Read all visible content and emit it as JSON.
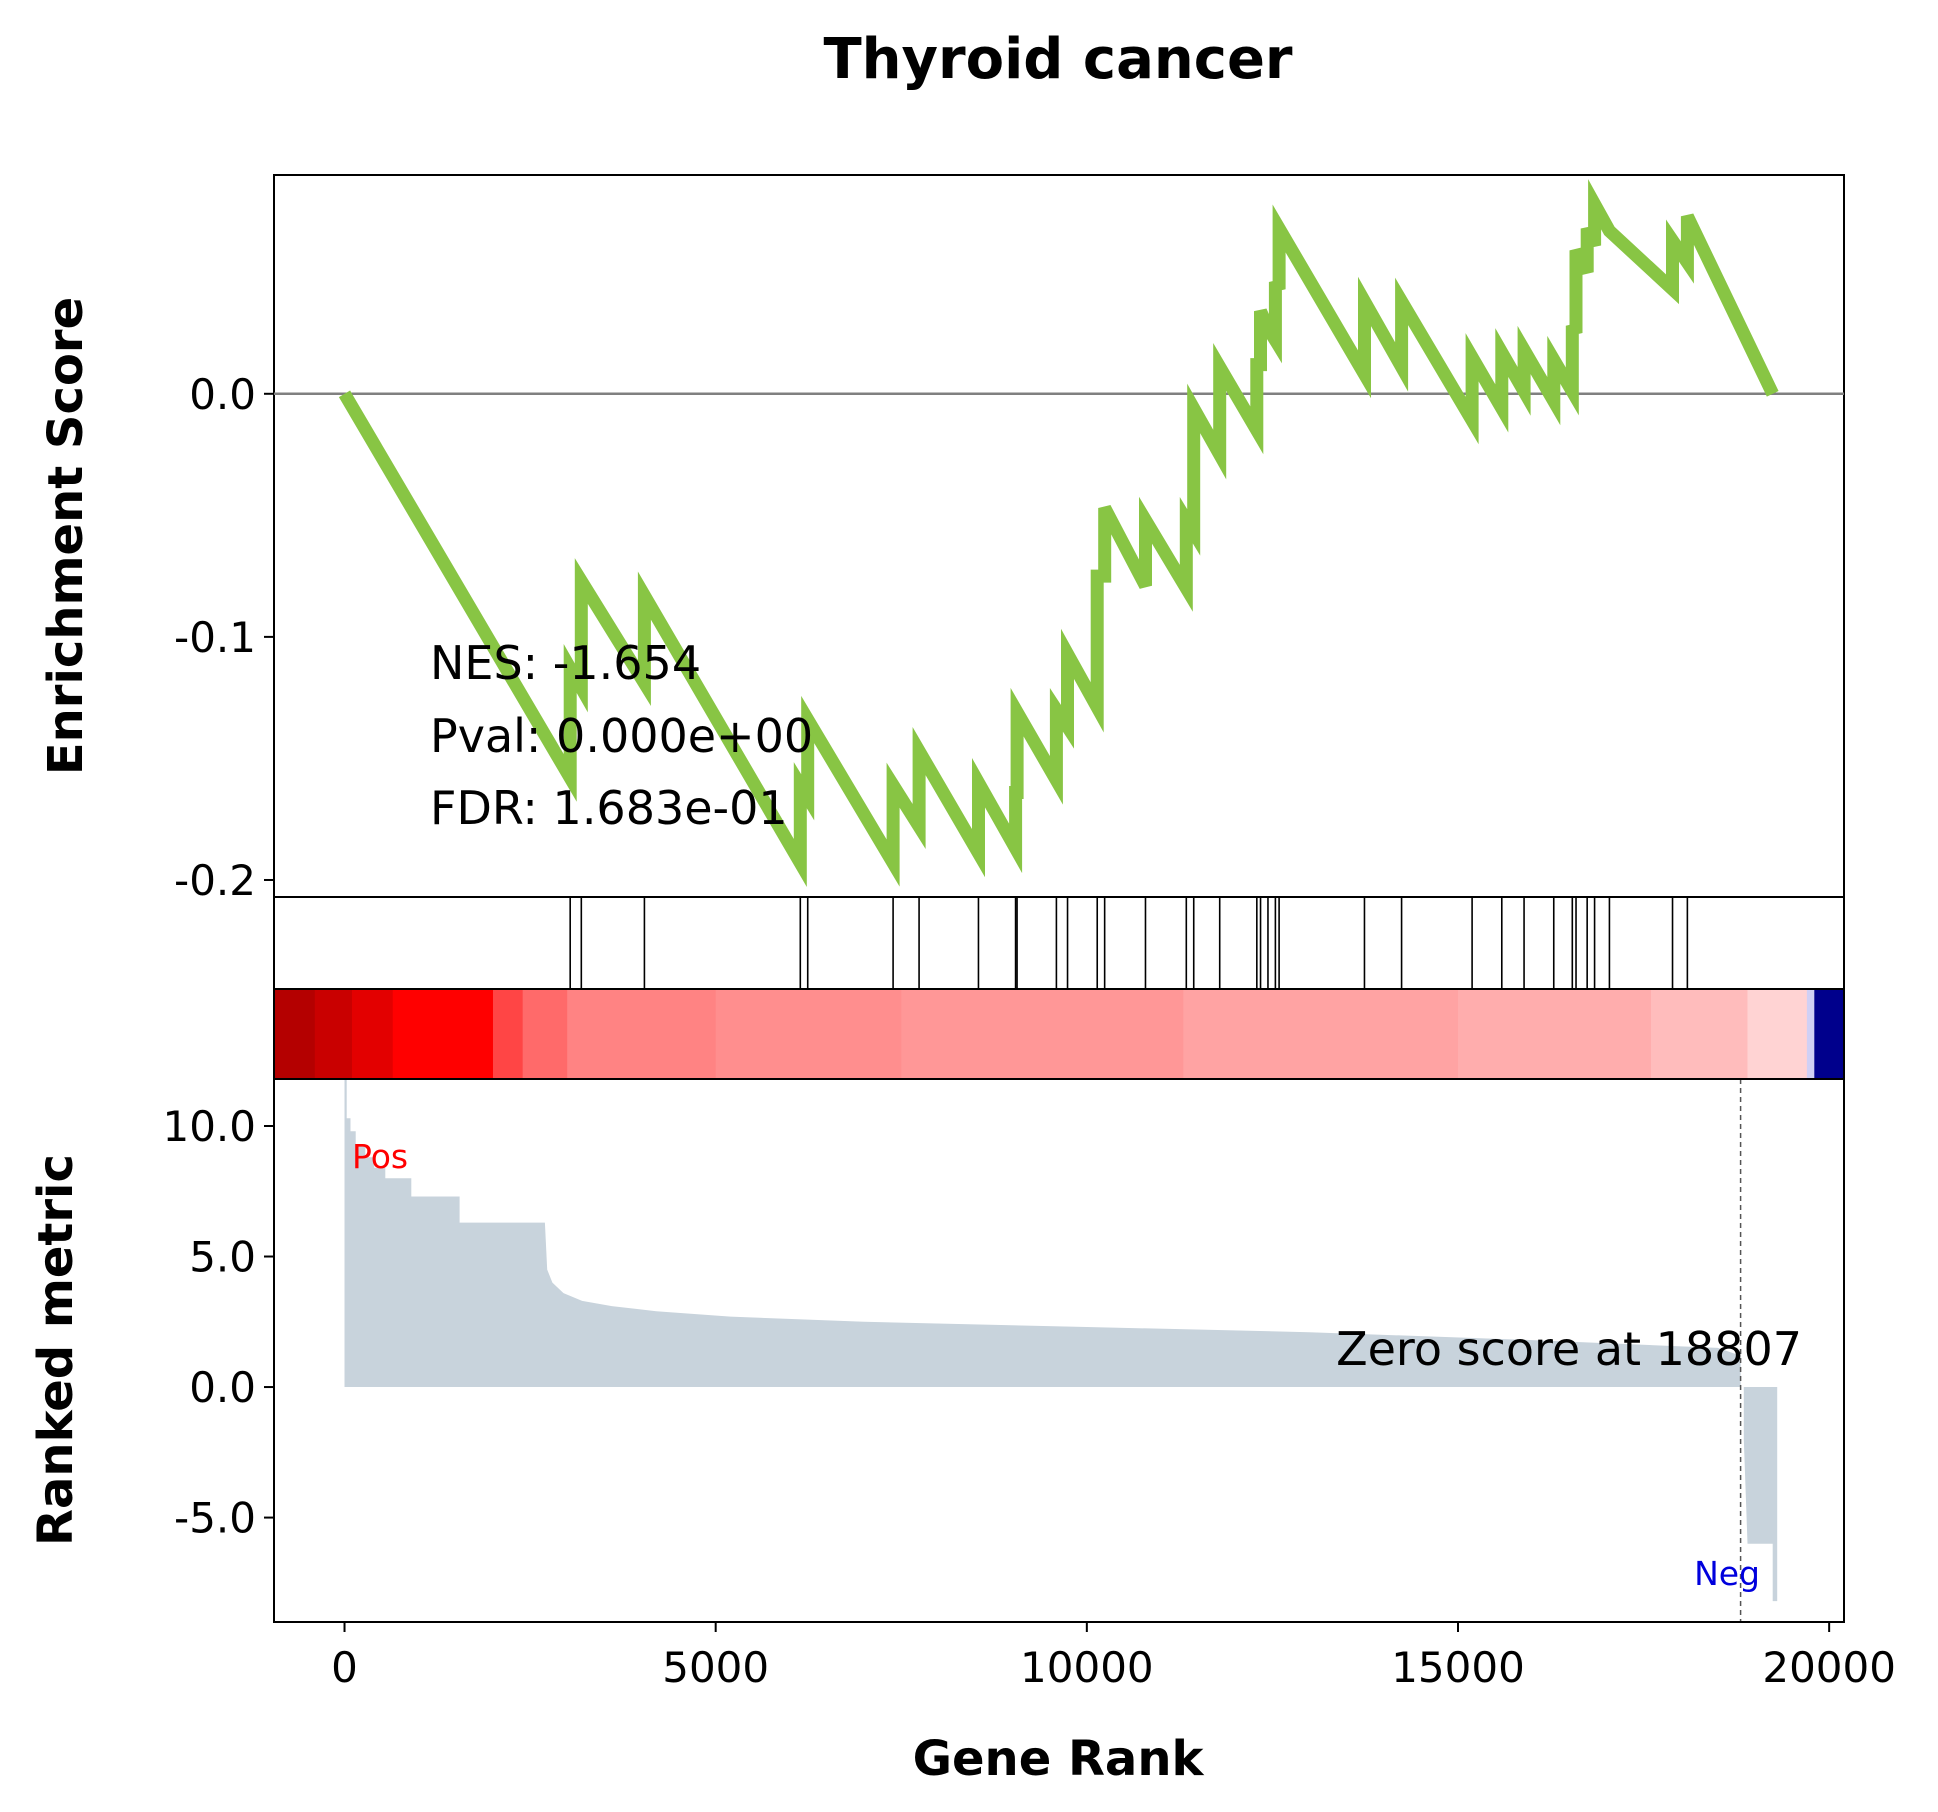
{
  "chart_data": {
    "type": "line",
    "title": "Thyroid cancer",
    "xlabel": "Gene Rank",
    "xlim": [
      -950,
      20200
    ],
    "x_ticks": [
      {
        "value": 0,
        "label": "0"
      },
      {
        "value": 5000,
        "label": "5000"
      },
      {
        "value": 10000,
        "label": "10000"
      },
      {
        "value": 15000,
        "label": "15000"
      },
      {
        "value": 20000,
        "label": "20000"
      }
    ],
    "enrichment": {
      "ylabel": "Enrichment Score",
      "ylim": [
        -0.207,
        0.09
      ],
      "y_ticks": [
        {
          "value": 0.0,
          "label": "0.0"
        },
        {
          "value": -0.1,
          "label": "-0.1"
        },
        {
          "value": -0.2,
          "label": "-0.2"
        }
      ],
      "line_color": "#88c544",
      "zero_line_color": "#808080",
      "stats": {
        "nes": "NES: -1.654",
        "pval": "Pval: 0.000e+00",
        "fdr": "FDR: 1.683e-01"
      },
      "hit_step": 0.0225,
      "hits": [
        3040,
        3190,
        4040,
        6140,
        6240,
        7390,
        7740,
        8540,
        9040,
        9060,
        9590,
        9740,
        10140,
        10240,
        10790,
        11340,
        11440,
        11790,
        12290,
        12340,
        12440,
        12540,
        12590,
        13740,
        14240,
        15190,
        15590,
        15890,
        16290,
        16540,
        16590,
        16740,
        16840,
        17040,
        17890,
        18090
      ],
      "points": [
        [
          0,
          0.0
        ],
        [
          3040,
          -0.158
        ],
        [
          3040,
          -0.113
        ],
        [
          3190,
          -0.121
        ],
        [
          3190,
          -0.077
        ],
        [
          4040,
          -0.119
        ],
        [
          4040,
          -0.083
        ],
        [
          6140,
          -0.193
        ],
        [
          6140,
          -0.161
        ],
        [
          6240,
          -0.166
        ],
        [
          6240,
          -0.134
        ],
        [
          7390,
          -0.193
        ],
        [
          7390,
          -0.161
        ],
        [
          7740,
          -0.178
        ],
        [
          7740,
          -0.147
        ],
        [
          8540,
          -0.189
        ],
        [
          8540,
          -0.16
        ],
        [
          9040,
          -0.187
        ],
        [
          9040,
          -0.164
        ],
        [
          9060,
          -0.164
        ],
        [
          9060,
          -0.131
        ],
        [
          9590,
          -0.159
        ],
        [
          9590,
          -0.13
        ],
        [
          9740,
          -0.137
        ],
        [
          9740,
          -0.107
        ],
        [
          10140,
          -0.129
        ],
        [
          10140,
          -0.075
        ],
        [
          10240,
          -0.075
        ],
        [
          10240,
          -0.047
        ],
        [
          10790,
          -0.079
        ],
        [
          10790,
          -0.052
        ],
        [
          11340,
          -0.08
        ],
        [
          11340,
          -0.052
        ],
        [
          11440,
          -0.057
        ],
        [
          11440,
          -0.006
        ],
        [
          11790,
          -0.025
        ],
        [
          11790,
          0.011
        ],
        [
          12290,
          -0.015
        ],
        [
          12290,
          0.012
        ],
        [
          12340,
          0.012
        ],
        [
          12340,
          0.034
        ],
        [
          12440,
          0.027
        ],
        [
          12440,
          0.027
        ],
        [
          12540,
          0.022
        ],
        [
          12540,
          0.046
        ],
        [
          12590,
          0.043
        ],
        [
          12590,
          0.068
        ],
        [
          13740,
          0.008
        ],
        [
          13740,
          0.038
        ],
        [
          14240,
          0.011
        ],
        [
          14240,
          0.038
        ],
        [
          15190,
          -0.011
        ],
        [
          15190,
          0.015
        ],
        [
          15590,
          -0.006
        ],
        [
          15590,
          0.017
        ],
        [
          15890,
          0.001
        ],
        [
          15890,
          0.018
        ],
        [
          16290,
          -0.003
        ],
        [
          16290,
          0.014
        ],
        [
          16540,
          0.001
        ],
        [
          16540,
          0.028
        ],
        [
          16590,
          0.025
        ],
        [
          16590,
          0.059
        ],
        [
          16740,
          0.05
        ],
        [
          16740,
          0.068
        ],
        [
          16840,
          0.061
        ],
        [
          16840,
          0.078
        ],
        [
          17040,
          0.067
        ],
        [
          17040,
          0.067
        ],
        [
          17890,
          0.043
        ],
        [
          17890,
          0.063
        ],
        [
          18090,
          0.054
        ],
        [
          18090,
          0.073
        ],
        [
          19240,
          0.0
        ]
      ]
    },
    "heatmap": {
      "colors": [
        {
          "x0": -950,
          "x1": -400,
          "color": "#b40000"
        },
        {
          "x0": -400,
          "x1": 100,
          "color": "#c90000"
        },
        {
          "x0": 100,
          "x1": 650,
          "color": "#e30000"
        },
        {
          "x0": 650,
          "x1": 2000,
          "color": "#ff0000"
        },
        {
          "x0": 2000,
          "x1": 2400,
          "color": "#ff4545"
        },
        {
          "x0": 2400,
          "x1": 3000,
          "color": "#ff6a6a"
        },
        {
          "x0": 3000,
          "x1": 5000,
          "color": "#ff8383"
        },
        {
          "x0": 5000,
          "x1": 7500,
          "color": "#ff8e8e"
        },
        {
          "x0": 7500,
          "x1": 11300,
          "color": "#ff9797"
        },
        {
          "x0": 11300,
          "x1": 15000,
          "color": "#ffa3a3"
        },
        {
          "x0": 15000,
          "x1": 17600,
          "color": "#ffadad"
        },
        {
          "x0": 17600,
          "x1": 18900,
          "color": "#ffbcbc"
        },
        {
          "x0": 18900,
          "x1": 19700,
          "color": "#ffd3d3"
        },
        {
          "x0": 19700,
          "x1": 19800,
          "color": "#d0d0f5"
        },
        {
          "x0": 19800,
          "x1": 20200,
          "color": "#00008c"
        }
      ]
    },
    "ranked": {
      "ylabel": "Ranked metric",
      "ylim": [
        -9.0,
        11.8
      ],
      "y_ticks": [
        {
          "value": 10.0,
          "label": "10.0"
        },
        {
          "value": 5.0,
          "label": "5.0"
        },
        {
          "value": 0.0,
          "label": "0.0"
        },
        {
          "value": -5.0,
          "label": "-5.0"
        }
      ],
      "fill_color": "#c8d3dc",
      "zero_score_rank": 18807,
      "zero_score_text": "Zero score at 18807",
      "pos_label": "Pos",
      "neg_label": "Neg",
      "pos_color": "#ff0000",
      "neg_color": "#0000dd",
      "points": [
        [
          0,
          11.8
        ],
        [
          30,
          11.8
        ],
        [
          30,
          10.3
        ],
        [
          80,
          10.3
        ],
        [
          80,
          9.8
        ],
        [
          150,
          9.8
        ],
        [
          150,
          9.3
        ],
        [
          280,
          9.3
        ],
        [
          280,
          8.8
        ],
        [
          400,
          8.8
        ],
        [
          400,
          8.4
        ],
        [
          550,
          8.4
        ],
        [
          550,
          8.0
        ],
        [
          900,
          8.0
        ],
        [
          900,
          7.3
        ],
        [
          1550,
          7.3
        ],
        [
          1550,
          6.3
        ],
        [
          2700,
          6.3
        ],
        [
          2730,
          4.5
        ],
        [
          2800,
          4.0
        ],
        [
          2950,
          3.6
        ],
        [
          3200,
          3.3
        ],
        [
          3600,
          3.1
        ],
        [
          4200,
          2.9
        ],
        [
          5200,
          2.7
        ],
        [
          7000,
          2.5
        ],
        [
          10000,
          2.3
        ],
        [
          13000,
          2.1
        ],
        [
          16000,
          1.8
        ],
        [
          18500,
          1.5
        ],
        [
          18807,
          1.2
        ],
        [
          18807,
          0
        ],
        [
          18850,
          0
        ],
        [
          18850,
          -2.0
        ],
        [
          18900,
          -6.0
        ],
        [
          19240,
          -6.0
        ],
        [
          19240,
          -8.2
        ],
        [
          19300,
          -8.2
        ],
        [
          19300,
          0
        ]
      ]
    }
  }
}
